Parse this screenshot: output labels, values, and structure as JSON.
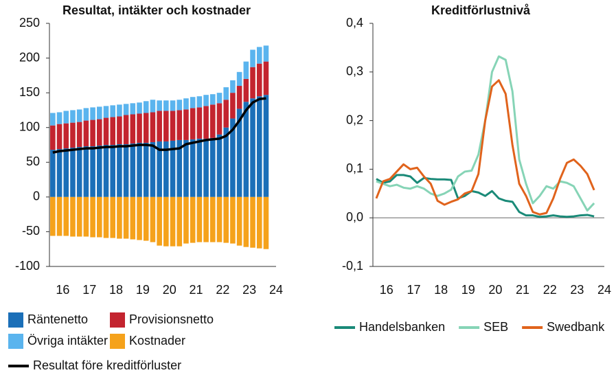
{
  "chart_data": [
    {
      "type": "bar",
      "title": "Resultat, intäkter och kostnader",
      "x": [
        2016.125,
        2016.375,
        2016.625,
        2016.875,
        2017.125,
        2017.375,
        2017.625,
        2017.875,
        2018.125,
        2018.375,
        2018.625,
        2018.875,
        2019.125,
        2019.375,
        2019.625,
        2019.875,
        2020.125,
        2020.375,
        2020.625,
        2020.875,
        2021.125,
        2021.375,
        2021.625,
        2021.875,
        2022.125,
        2022.375,
        2022.625,
        2022.875,
        2023.125,
        2023.375,
        2023.625,
        2023.875,
        2024.125
      ],
      "xlim": [
        2016,
        2024.5
      ],
      "xticks": [
        {
          "value": 2016.5,
          "label": "16"
        },
        {
          "value": 2017.5,
          "label": "17"
        },
        {
          "value": 2018.5,
          "label": "18"
        },
        {
          "value": 2019.5,
          "label": "19"
        },
        {
          "value": 2020.5,
          "label": "20"
        },
        {
          "value": 2021.5,
          "label": "21"
        },
        {
          "value": 2022.5,
          "label": "22"
        },
        {
          "value": 2023.5,
          "label": "23"
        },
        {
          "value": 2024.5,
          "label": "24"
        }
      ],
      "ylim": [
        -100,
        250
      ],
      "yticks": [
        -100,
        -50,
        0,
        50,
        100,
        150,
        200,
        250
      ],
      "legend": "bottom",
      "series": [
        {
          "name": "Räntenetto",
          "color": "#1b6fb8",
          "values": [
            68,
            69,
            70,
            71,
            72,
            73,
            73,
            74,
            75,
            75,
            76,
            76,
            77,
            78,
            78,
            79,
            80,
            80,
            81,
            82,
            82,
            83,
            84,
            84,
            85,
            90,
            100,
            113,
            127,
            137,
            142,
            145,
            147
          ]
        },
        {
          "name": "Provisionsnetto",
          "color": "#c3242f",
          "values": [
            35,
            36,
            36,
            36,
            36,
            37,
            38,
            38,
            39,
            40,
            40,
            42,
            42,
            42,
            43,
            43,
            44,
            44,
            43,
            43,
            44,
            45,
            45,
            47,
            48,
            45,
            40,
            37,
            33,
            33,
            45,
            47,
            48
          ]
        },
        {
          "name": "Övriga intäkter",
          "color": "#5ab4ee",
          "values": [
            18,
            17,
            18,
            18,
            18,
            18,
            18,
            18,
            17,
            17,
            17,
            16,
            16,
            16,
            17,
            18,
            15,
            15,
            15,
            15,
            16,
            16,
            16,
            16,
            15,
            15,
            18,
            18,
            20,
            25,
            25,
            24,
            23
          ]
        },
        {
          "name": "Kostnader",
          "color": "#f5a21b",
          "values": [
            -56,
            -56,
            -56,
            -57,
            -57,
            -57,
            -58,
            -58,
            -59,
            -59,
            -60,
            -60,
            -61,
            -62,
            -63,
            -65,
            -70,
            -71,
            -71,
            -71,
            -67,
            -66,
            -65,
            -65,
            -65,
            -65,
            -66,
            -67,
            -70,
            -72,
            -73,
            -74,
            -75
          ]
        },
        {
          "name": "Resultat före kreditförluster",
          "color": "#000000",
          "type": "line",
          "values": [
            64,
            66,
            67,
            68,
            69,
            70,
            70,
            71,
            72,
            72,
            73,
            73,
            74,
            75,
            75,
            74,
            68,
            68,
            69,
            70,
            76,
            78,
            80,
            82,
            83,
            84,
            88,
            97,
            110,
            125,
            136,
            141,
            142
          ]
        }
      ]
    },
    {
      "type": "line",
      "title": "Kreditförlustnivå",
      "x": [
        2016.125,
        2016.375,
        2016.625,
        2016.875,
        2017.125,
        2017.375,
        2017.625,
        2017.875,
        2018.125,
        2018.375,
        2018.625,
        2018.875,
        2019.125,
        2019.375,
        2019.625,
        2019.875,
        2020.125,
        2020.375,
        2020.625,
        2020.875,
        2021.125,
        2021.375,
        2021.625,
        2021.875,
        2022.125,
        2022.375,
        2022.625,
        2022.875,
        2023.125,
        2023.375,
        2023.625,
        2023.875,
        2024.125
      ],
      "xlim": [
        2016,
        2024.5
      ],
      "xticks": [
        {
          "value": 2016.5,
          "label": "16"
        },
        {
          "value": 2017.5,
          "label": "17"
        },
        {
          "value": 2018.5,
          "label": "18"
        },
        {
          "value": 2019.5,
          "label": "19"
        },
        {
          "value": 2020.5,
          "label": "20"
        },
        {
          "value": 2021.5,
          "label": "21"
        },
        {
          "value": 2022.5,
          "label": "22"
        },
        {
          "value": 2023.5,
          "label": "23"
        },
        {
          "value": 2024.5,
          "label": "24"
        }
      ],
      "ylim": [
        -0.1,
        0.4
      ],
      "yticks": [
        {
          "value": -0.1,
          "label": "-0,1"
        },
        {
          "value": 0,
          "label": "0,0"
        },
        {
          "value": 0.1,
          "label": "0,1"
        },
        {
          "value": 0.2,
          "label": "0,2"
        },
        {
          "value": 0.3,
          "label": "0,3"
        },
        {
          "value": 0.4,
          "label": "0,4"
        }
      ],
      "legend": "bottom",
      "series": [
        {
          "name": "Handelsbanken",
          "color": "#1a8a78",
          "values": [
            0.08,
            0.072,
            0.075,
            0.088,
            0.088,
            0.085,
            0.072,
            0.082,
            0.08,
            0.079,
            0.079,
            0.078,
            0.04,
            0.045,
            0.055,
            0.052,
            0.045,
            0.055,
            0.04,
            0.035,
            0.033,
            0.012,
            0.005,
            0.005,
            0.002,
            0.003,
            0.005,
            0.003,
            0.002,
            0.003,
            0.005,
            0.006,
            0.003
          ]
        },
        {
          "name": "SEB",
          "color": "#86d4b6",
          "values": [
            0.075,
            0.07,
            0.065,
            0.068,
            0.062,
            0.06,
            0.065,
            0.06,
            0.05,
            0.045,
            0.05,
            0.058,
            0.085,
            0.095,
            0.097,
            0.13,
            0.2,
            0.3,
            0.332,
            0.325,
            0.26,
            0.12,
            0.07,
            0.03,
            0.045,
            0.065,
            0.06,
            0.075,
            0.072,
            0.065,
            0.04,
            0.015,
            0.03
          ]
        },
        {
          "name": "Swedbank",
          "color": "#e0631c",
          "values": [
            0.04,
            0.075,
            0.08,
            0.095,
            0.11,
            0.1,
            0.103,
            0.085,
            0.07,
            0.035,
            0.027,
            0.033,
            0.038,
            0.05,
            0.055,
            0.09,
            0.2,
            0.27,
            0.283,
            0.255,
            0.15,
            0.07,
            0.045,
            0.012,
            0.007,
            0.01,
            0.04,
            0.08,
            0.113,
            0.12,
            0.107,
            0.09,
            0.057
          ]
        }
      ]
    }
  ]
}
